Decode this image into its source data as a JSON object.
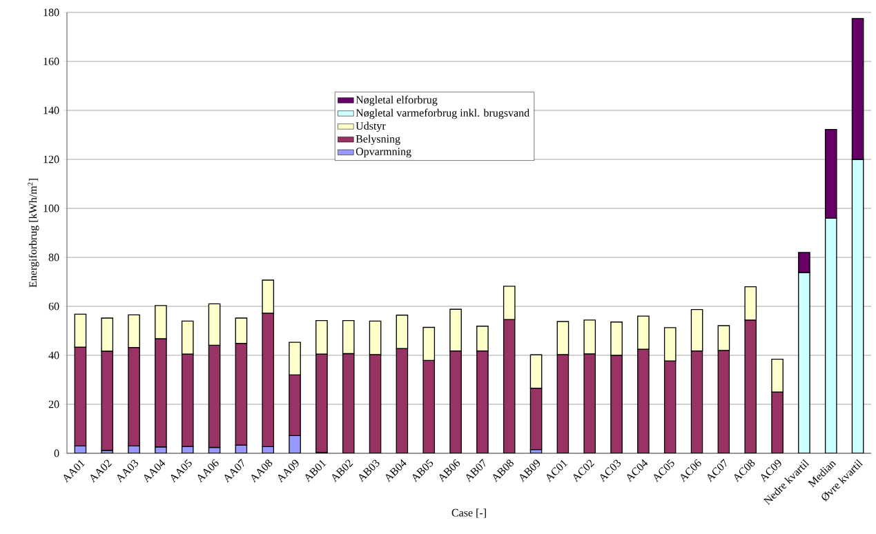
{
  "chart_data": {
    "type": "bar",
    "stacked": true,
    "xlabel": "Case [-]",
    "ylabel": "Energiforbrug [kWh/m$^{2}$]",
    "categories": [
      "AA01",
      "AA02",
      "AA03",
      "AA04",
      "AA05",
      "AA06",
      "AA07",
      "AA08",
      "AA09",
      "AB01",
      "AB02",
      "AB03",
      "AB04",
      "AB05",
      "AB06",
      "AB07",
      "AB08",
      "AB09",
      "AC01",
      "AC02",
      "AC03",
      "AC04",
      "AC05",
      "AC06",
      "AC07",
      "AC08",
      "AC09",
      "Nedre kvartil",
      "Median",
      "Øvre kvartil"
    ],
    "series": [
      {
        "name": "Opvarmning",
        "color": "#9999ff",
        "values": [
          3,
          1.2,
          3,
          2.6,
          2.8,
          2.4,
          3.3,
          2.7,
          7.2,
          0.3,
          0,
          0,
          0,
          0,
          0,
          null,
          0,
          1.5,
          0,
          0,
          0,
          0,
          0,
          0,
          0,
          0,
          0,
          null,
          null,
          null
        ]
      },
      {
        "name": "Belysning",
        "color": "#993366",
        "values": [
          40.3,
          40.5,
          40.2,
          44.2,
          37.7,
          41.7,
          41.6,
          54.5,
          24.8,
          40.2,
          40.7,
          40.3,
          42.8,
          37.9,
          41.8,
          41.8,
          54.6,
          25.1,
          40.3,
          40.6,
          40,
          42.5,
          37.7,
          41.8,
          42,
          54.4,
          25,
          null,
          null,
          null
        ]
      },
      {
        "name": "Udstyr",
        "color": "#ffffcc",
        "values": [
          13.5,
          13.5,
          13.3,
          13.5,
          13.5,
          16.9,
          10.3,
          13.5,
          13.3,
          13.7,
          13.5,
          13.7,
          13.6,
          13.5,
          17,
          10.1,
          13.6,
          13.6,
          13.5,
          13.8,
          13.6,
          13.5,
          13.6,
          16.9,
          10.1,
          13.6,
          13.4,
          null,
          null,
          null
        ]
      },
      {
        "name": "Nøgletal varmeforbrug inkl. brugsvand",
        "color": "#ccffff",
        "values": [
          null,
          null,
          null,
          null,
          null,
          null,
          null,
          null,
          null,
          null,
          null,
          null,
          null,
          null,
          null,
          null,
          null,
          null,
          null,
          null,
          null,
          null,
          null,
          null,
          null,
          null,
          null,
          73.8,
          96,
          120
        ]
      },
      {
        "name": "Nøgletal elforbrug",
        "color": "#660066",
        "values": [
          null,
          null,
          null,
          null,
          null,
          null,
          null,
          null,
          null,
          null,
          null,
          null,
          null,
          null,
          null,
          null,
          null,
          null,
          null,
          null,
          null,
          null,
          null,
          null,
          null,
          null,
          null,
          8.2,
          36.2,
          57.5
        ]
      }
    ],
    "ylim": [
      0,
      180
    ],
    "yticks": [
      0,
      20,
      40,
      60,
      80,
      100,
      120,
      140,
      160,
      180
    ],
    "grid": "y",
    "legend": "top"
  }
}
